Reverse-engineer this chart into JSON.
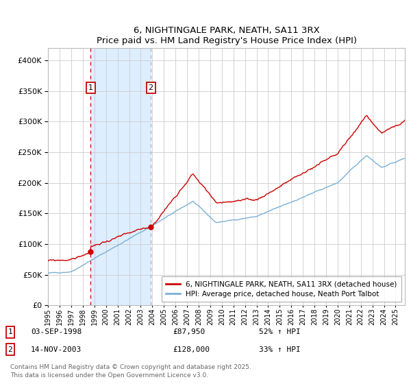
{
  "title": "6, NIGHTINGALE PARK, NEATH, SA11 3RX",
  "subtitle": "Price paid vs. HM Land Registry's House Price Index (HPI)",
  "legend_line1": "6, NIGHTINGALE PARK, NEATH, SA11 3RX (detached house)",
  "legend_line2": "HPI: Average price, detached house, Neath Port Talbot",
  "annotation1_label": "1",
  "annotation1_date": "03-SEP-1998",
  "annotation1_price": "£87,950",
  "annotation1_hpi": "52% ↑ HPI",
  "annotation1_year": 1998.67,
  "annotation1_value": 87950,
  "annotation2_label": "2",
  "annotation2_date": "14-NOV-2003",
  "annotation2_price": "£128,000",
  "annotation2_hpi": "33% ↑ HPI",
  "annotation2_year": 2003.87,
  "annotation2_value": 128000,
  "footnote_line1": "Contains HM Land Registry data © Crown copyright and database right 2025.",
  "footnote_line2": "This data is licensed under the Open Government Licence v3.0.",
  "red_color": "#cc0000",
  "blue_color": "#7ab0d4",
  "shade_color": "#ddeeff",
  "grid_color": "#cccccc",
  "background_color": "#ffffff",
  "vline2_color": "#aaaacc",
  "yticks": [
    0,
    50000,
    100000,
    150000,
    200000,
    250000,
    300000,
    350000,
    400000
  ],
  "ylim_max": 420000,
  "xmin": 1995.0,
  "xmax": 2025.8
}
